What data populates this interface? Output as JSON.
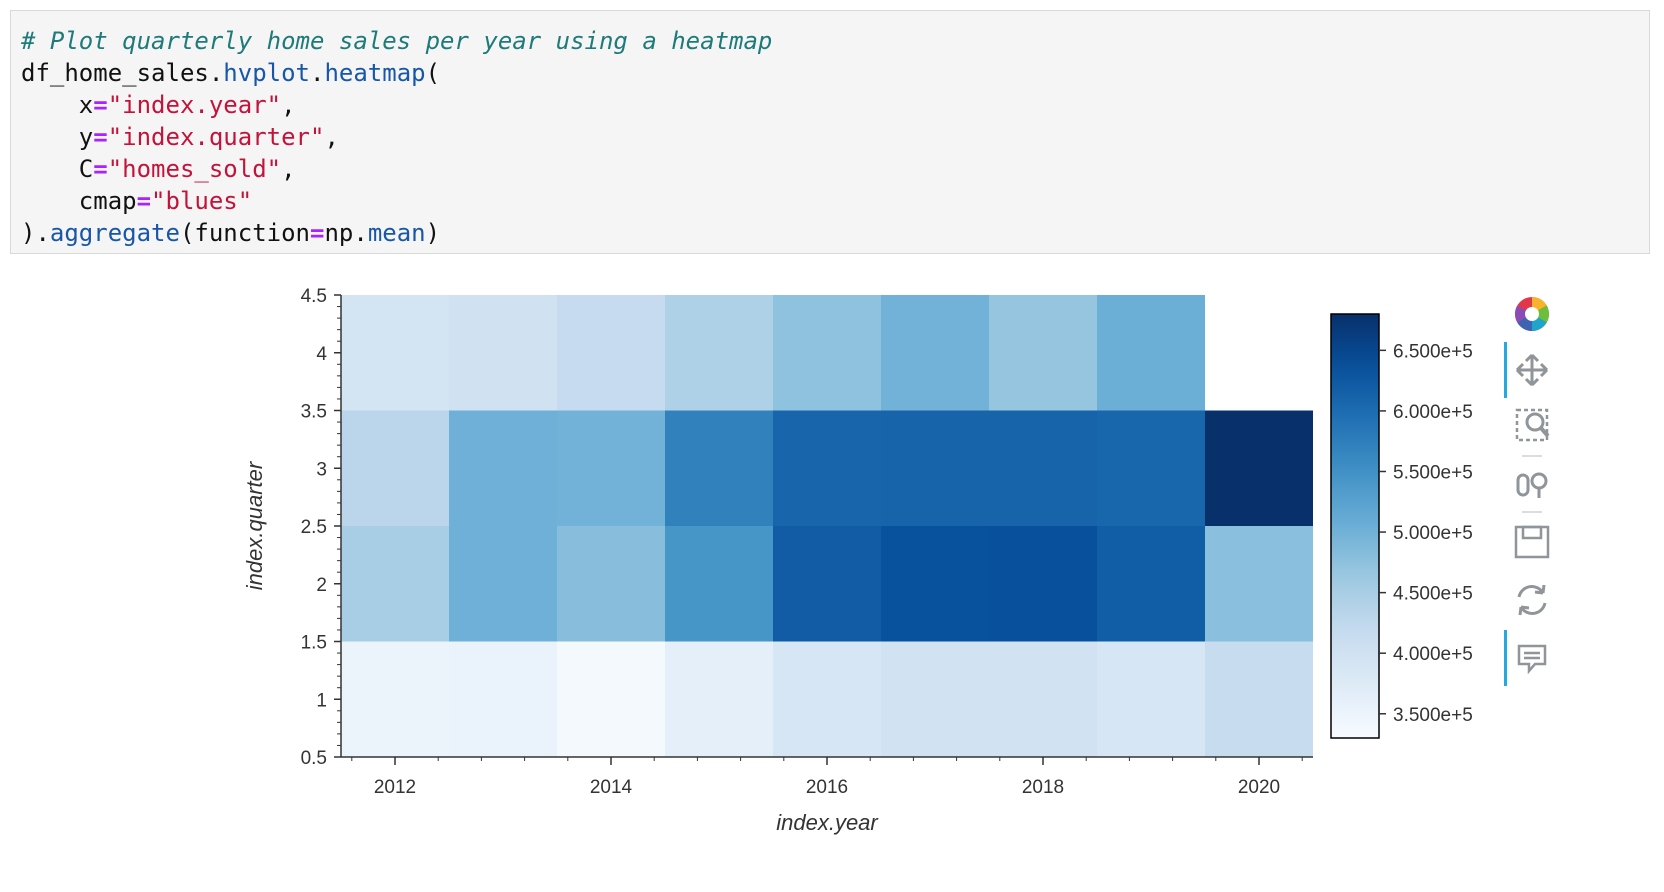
{
  "code": {
    "comment": "# Plot quarterly home sales per year using a heatmap",
    "line2_obj": "df_home_sales.",
    "line2_mod": "hvplot",
    "line2_dot": ".",
    "line2_fn": "heatmap",
    "line2_paren": "(",
    "x_kw": "x",
    "x_val": "\"index.year\"",
    "y_kw": "y",
    "y_val": "\"index.quarter\"",
    "c_kw": "C",
    "c_val": "\"homes_sold\"",
    "cmap_kw": "cmap",
    "cmap_val": "\"blues\"",
    "eq": "=",
    "comma": ",",
    "close_paren": ").",
    "agg_fn": "aggregate",
    "agg_open": "(function",
    "agg_arg_obj": "np.",
    "agg_arg_fn": "mean",
    "agg_close": ")"
  },
  "chart_data": {
    "type": "heatmap",
    "title": "",
    "xlabel": "index.year",
    "ylabel": "index.quarter",
    "x_categories": [
      2012,
      2013,
      2014,
      2015,
      2016,
      2017,
      2018,
      2019,
      2020
    ],
    "y_categories": [
      1,
      2,
      3,
      4
    ],
    "xlim": [
      2011.5,
      2020.5
    ],
    "ylim": [
      0.5,
      4.5
    ],
    "x_ticks": [
      "2012",
      "2014",
      "2016",
      "2018",
      "2020"
    ],
    "y_ticks": [
      "0.5",
      "1",
      "1.5",
      "2",
      "2.5",
      "3",
      "3.5",
      "4",
      "4.5"
    ],
    "cmap": "blues",
    "clim": [
      330000,
      680000
    ],
    "colorbar_ticks": [
      "3.500e+5",
      "4.000e+5",
      "4.500e+5",
      "5.000e+5",
      "5.500e+5",
      "6.000e+5",
      "6.500e+5"
    ],
    "colorbar_tick_values": [
      350000,
      400000,
      450000,
      500000,
      550000,
      600000,
      650000
    ],
    "values": [
      [
        351000,
        353000,
        336000,
        363000,
        388000,
        397000,
        397000,
        387000,
        415000
      ],
      [
        450000,
        502000,
        480000,
        543000,
        621000,
        636000,
        637000,
        618000,
        478000
      ],
      [
        430000,
        502000,
        498000,
        571000,
        609000,
        610000,
        610000,
        608000,
        680000
      ],
      [
        393000,
        400000,
        418000,
        443000,
        474000,
        498000,
        468000,
        505000,
        null
      ]
    ]
  },
  "toolbar": {
    "logo": "bokeh-logo-icon",
    "pan": "pan-icon",
    "box_zoom": "box-zoom-icon",
    "wheel_zoom": "wheel-zoom-icon",
    "save": "save-icon",
    "reset": "reset-icon",
    "hover": "hover-icon",
    "active_color": "#26a9e0"
  }
}
